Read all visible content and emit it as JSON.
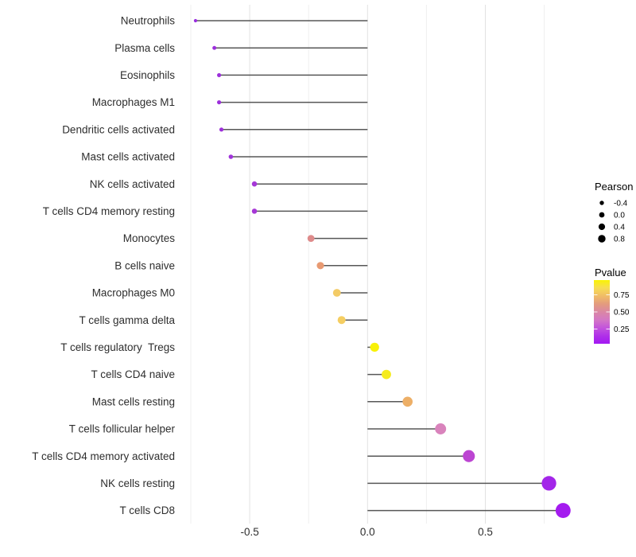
{
  "figure": {
    "background": "#FFFFFF"
  },
  "chart_data": {
    "type": "scatter",
    "subtype": "lollipop",
    "orientation": "horizontal",
    "title": "",
    "xlabel": "",
    "ylabel": "",
    "categories": [
      "Neutrophils",
      "Plasma cells",
      "Eosinophils",
      "Macrophages M1",
      "Dendritic cells activated",
      "Mast cells activated",
      "NK cells activated",
      "T cells CD4 memory resting",
      "Monocytes",
      "B cells naive",
      "Macrophages M0",
      "T cells gamma delta",
      "T cells regulatory  Tregs",
      "T cells CD4 naive",
      "Mast cells resting",
      "T cells follicular helper",
      "T cells CD4 memory activated",
      "NK cells resting",
      "T cells CD8"
    ],
    "series": [
      {
        "name": "Pearson",
        "values": [
          -0.73,
          -0.65,
          -0.63,
          -0.63,
          -0.62,
          -0.58,
          -0.48,
          -0.48,
          -0.24,
          -0.2,
          -0.13,
          -0.11,
          0.03,
          0.08,
          0.17,
          0.31,
          0.43,
          0.77,
          0.83
        ]
      }
    ],
    "point_colors": [
      "#9A2EDF",
      "#9C2FDB",
      "#9C2FDB",
      "#9C2FDB",
      "#9D30DA",
      "#A033DA",
      "#A537D7",
      "#A637D6",
      "#DE8B8B",
      "#E89A72",
      "#F3CB66",
      "#F5CE62",
      "#F8F107",
      "#F5EB1F",
      "#EDAF67",
      "#D983BC",
      "#BC45D2",
      "#A326E9",
      "#A41BEF"
    ],
    "baseline_x": 0,
    "xlim": [
      -0.81,
      0.91
    ],
    "x_ticks": {
      "values": [
        -0.5,
        0,
        0.5
      ],
      "labels": [
        "-0.5",
        "0.0",
        "0.5"
      ]
    },
    "gridlines": {
      "major": [
        -0.5,
        0,
        0.5
      ],
      "minor": [
        -0.75,
        -0.25,
        0.25,
        0.75
      ],
      "horizontal": false
    },
    "legend_position": "right",
    "legends": {
      "size": {
        "title": "Pearson",
        "entries": [
          {
            "label": "-0.4",
            "value": -0.4
          },
          {
            "label": "0.0",
            "value": 0.0
          },
          {
            "label": "0.4",
            "value": 0.4
          },
          {
            "label": "0.8",
            "value": 0.8
          }
        ],
        "dot_color": "#000000"
      },
      "color": {
        "title": "Pvalue",
        "tick_labels": [
          "0.75",
          "0.50",
          "0.25"
        ],
        "tick_values": [
          0.75,
          0.5,
          0.25
        ],
        "range_top_to_bottom": [
          0.95,
          0.05
        ],
        "gradient_top_to_bottom": [
          {
            "offset": 0.0,
            "color": "#F9F303"
          },
          {
            "offset": 0.12,
            "color": "#F7DE52"
          },
          {
            "offset": 0.25,
            "color": "#F0BC67"
          },
          {
            "offset": 0.38,
            "color": "#E39A7F"
          },
          {
            "offset": 0.5,
            "color": "#DA87A4"
          },
          {
            "offset": 0.62,
            "color": "#D478C4"
          },
          {
            "offset": 0.75,
            "color": "#C354DC"
          },
          {
            "offset": 0.88,
            "color": "#AF2FE9"
          },
          {
            "offset": 1.0,
            "color": "#A318F2"
          }
        ]
      }
    },
    "colors": {
      "stem": "#454545",
      "grid_major": "#E2E2E2",
      "grid_minor": "#EFEFEF",
      "axis_text": "#2E2E2E",
      "legend_text": "#000000"
    }
  }
}
